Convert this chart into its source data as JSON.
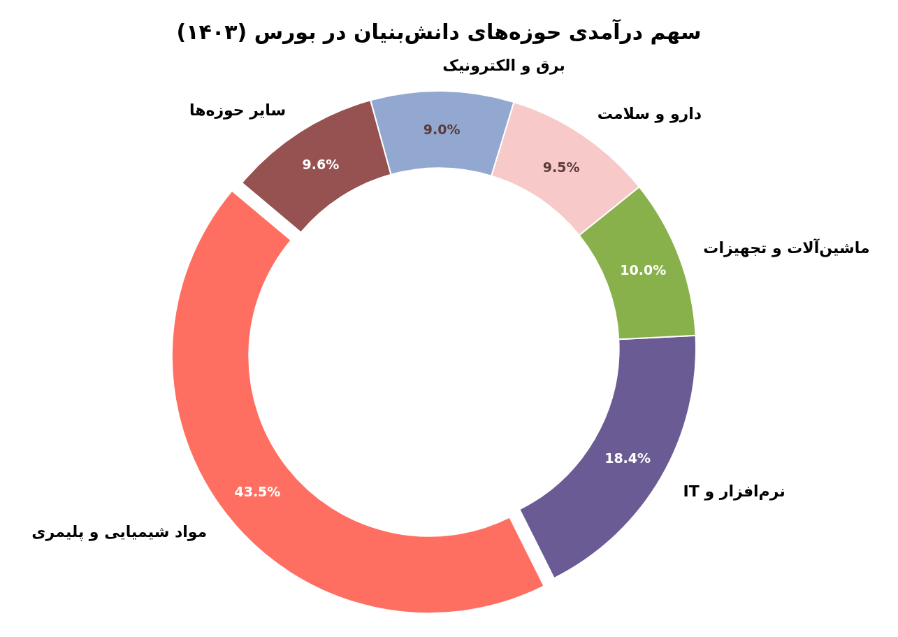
{
  "chart_data": {
    "type": "donut",
    "title": "سهم درآمدی حوزه‌های دانش‌بنیان در بورس (۱۴۰۳)",
    "categories": [
      "مواد شیمیایی و پلیمری",
      "نرم‌افزار و IT",
      "ماشین‌آلات و تجهیزات",
      "دارو و سلامت",
      "برق و الکترونیک",
      "سایر حوزه‌ها"
    ],
    "values": [
      43.5,
      18.4,
      10.0,
      9.5,
      9.0,
      9.6
    ],
    "colors": [
      "#ff6f61",
      "#6b5b95",
      "#88b04b",
      "#f7cac9",
      "#92a8d1",
      "#955251"
    ],
    "value_labels": [
      "43.5%",
      "18.4%",
      "10.0%",
      "9.5%",
      "9.0%",
      "9.6%"
    ]
  }
}
